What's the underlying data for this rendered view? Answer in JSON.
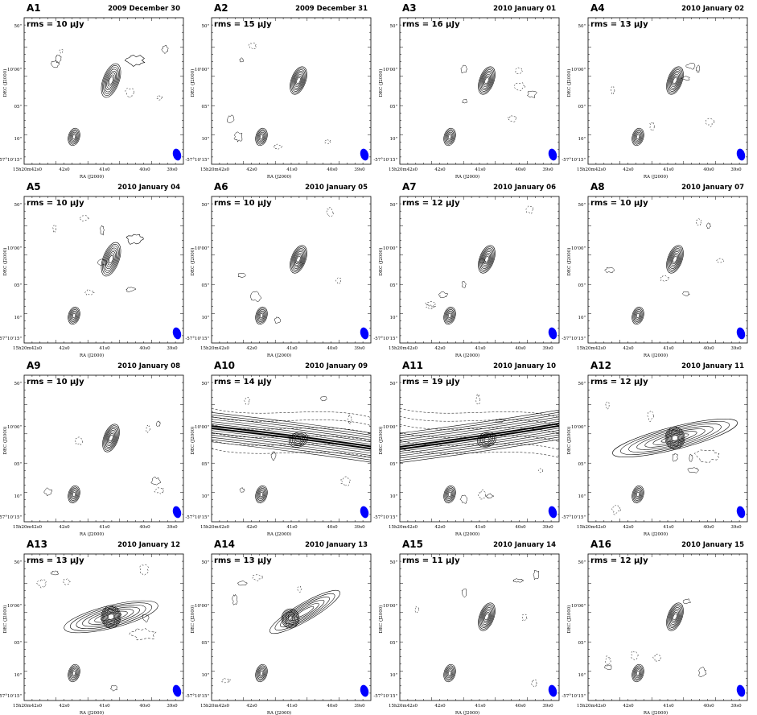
{
  "figure": {
    "panels": [
      {
        "id": "A1",
        "date": "2009 December 30",
        "rms": "rms = 10 μJy",
        "jet": "compact-wide"
      },
      {
        "id": "A2",
        "date": "2009 December 31",
        "rms": "rms = 15 μJy",
        "jet": "compact"
      },
      {
        "id": "A3",
        "date": "2010 January 01",
        "rms": "rms = 16 μJy",
        "jet": "compact"
      },
      {
        "id": "A4",
        "date": "2010 January 02",
        "rms": "rms = 13 μJy",
        "jet": "compact"
      },
      {
        "id": "A5",
        "date": "2010 January 04",
        "rms": "rms = 10 μJy",
        "jet": "compact-wide"
      },
      {
        "id": "A6",
        "date": "2010 January 05",
        "rms": "rms = 10 μJy",
        "jet": "compact"
      },
      {
        "id": "A7",
        "date": "2010 January 06",
        "rms": "rms = 12 μJy",
        "jet": "compact"
      },
      {
        "id": "A8",
        "date": "2010 January 07",
        "rms": "rms = 10 μJy",
        "jet": "compact"
      },
      {
        "id": "A9",
        "date": "2010 January 08",
        "rms": "rms = 10 μJy",
        "jet": "compact"
      },
      {
        "id": "A10",
        "date": "2010 January 09",
        "rms": "rms = 14 μJy",
        "jet": "streak-a"
      },
      {
        "id": "A11",
        "date": "2010 January 10",
        "rms": "rms = 19 μJy",
        "jet": "streak-b"
      },
      {
        "id": "A12",
        "date": "2010 January 11",
        "rms": "rms = 12 μJy",
        "jet": "extended"
      },
      {
        "id": "A13",
        "date": "2010 January 12",
        "rms": "rms = 13 μJy",
        "jet": "extended-short"
      },
      {
        "id": "A14",
        "date": "2010 January 13",
        "rms": "rms = 13 μJy",
        "jet": "diagonal"
      },
      {
        "id": "A15",
        "date": "2010 January 14",
        "rms": "rms = 11 μJy",
        "jet": "compact"
      },
      {
        "id": "A16",
        "date": "2010 January 15",
        "rms": "rms = 12 μJy",
        "jet": "compact"
      }
    ],
    "axes": {
      "xlabel": "RA (J2000)",
      "ylabel": "DEC (J2000)",
      "x_ticks": [
        "15h20m42s0",
        "42s0",
        "41s0",
        "40s0",
        "39s0"
      ],
      "y_ticks": [
        "50\"",
        "10'00\"",
        "05\"",
        "10\"",
        "-57°10'15\""
      ]
    },
    "colors": {
      "contour": "#000000",
      "beam": "#0000ff",
      "frame": "#000000"
    }
  },
  "chart_data": {
    "type": "contour-map-grid",
    "title": "",
    "xlabel": "RA (J2000)",
    "ylabel": "DEC (J2000)",
    "x_tick_labels": [
      "15h20m42s0",
      "42s0",
      "41s0",
      "40s0",
      "39s0"
    ],
    "y_tick_labels": [
      "50\"",
      "10'00\"",
      "05\"",
      "10\"",
      "-57°10'15\""
    ],
    "panels": [
      {
        "panel": "A1",
        "epoch": "2009 December 30",
        "rms_uJy": 10
      },
      {
        "panel": "A2",
        "epoch": "2009 December 31",
        "rms_uJy": 15
      },
      {
        "panel": "A3",
        "epoch": "2010 January 01",
        "rms_uJy": 16
      },
      {
        "panel": "A4",
        "epoch": "2010 January 02",
        "rms_uJy": 13
      },
      {
        "panel": "A5",
        "epoch": "2010 January 04",
        "rms_uJy": 10
      },
      {
        "panel": "A6",
        "epoch": "2010 January 05",
        "rms_uJy": 10
      },
      {
        "panel": "A7",
        "epoch": "2010 January 06",
        "rms_uJy": 12
      },
      {
        "panel": "A8",
        "epoch": "2010 January 07",
        "rms_uJy": 10
      },
      {
        "panel": "A9",
        "epoch": "2010 January 08",
        "rms_uJy": 10
      },
      {
        "panel": "A10",
        "epoch": "2010 January 09",
        "rms_uJy": 14
      },
      {
        "panel": "A11",
        "epoch": "2010 January 10",
        "rms_uJy": 19
      },
      {
        "panel": "A12",
        "epoch": "2010 January 11",
        "rms_uJy": 12
      },
      {
        "panel": "A13",
        "epoch": "2010 January 12",
        "rms_uJy": 13
      },
      {
        "panel": "A14",
        "epoch": "2010 January 13",
        "rms_uJy": 13
      },
      {
        "panel": "A15",
        "epoch": "2010 January 14",
        "rms_uJy": 11
      },
      {
        "panel": "A16",
        "epoch": "2010 January 15",
        "rms_uJy": 12
      }
    ]
  }
}
